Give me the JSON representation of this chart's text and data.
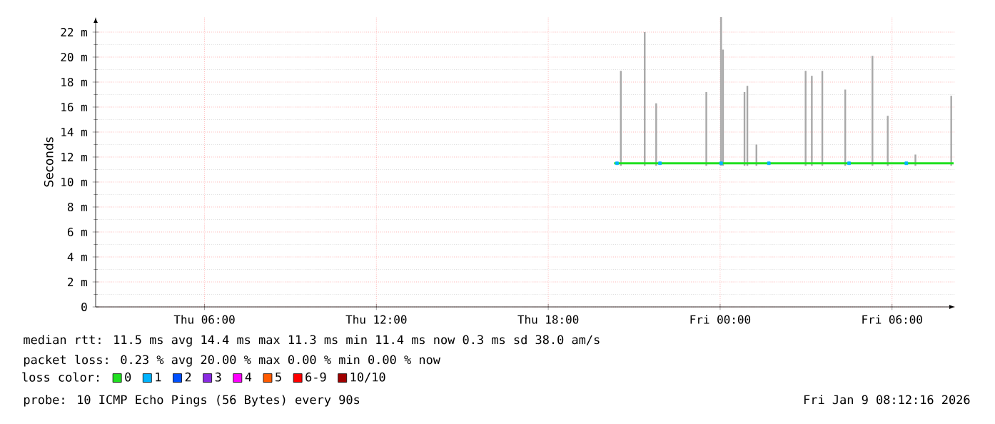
{
  "chart_data": {
    "type": "line",
    "ylabel": "Seconds",
    "legend_title": "loss color:",
    "xlim": [
      "2026-01-08T02:12",
      "2026-01-09T08:12"
    ],
    "xticks": [
      {
        "value": "2026-01-08T06:00",
        "label": "Thu 06:00"
      },
      {
        "value": "2026-01-08T12:00",
        "label": "Thu 12:00"
      },
      {
        "value": "2026-01-08T18:00",
        "label": "Thu 18:00"
      },
      {
        "value": "2026-01-09T00:00",
        "label": "Fri 00:00"
      },
      {
        "value": "2026-01-09T06:00",
        "label": "Fri 06:00"
      }
    ],
    "ylim": [
      0,
      23.2
    ],
    "yticks": [
      0,
      {
        "value": 2,
        "label": "2 m"
      },
      {
        "value": 4,
        "label": "4 m"
      },
      {
        "value": 6,
        "label": "6 m"
      },
      {
        "value": 8,
        "label": "8 m"
      },
      {
        "value": 10,
        "label": "10 m"
      },
      {
        "value": 12,
        "label": "12 m"
      },
      {
        "value": 14,
        "label": "14 m"
      },
      {
        "value": 16,
        "label": "16 m"
      },
      {
        "value": 18,
        "label": "18 m"
      },
      {
        "value": 20,
        "label": "20 m"
      },
      {
        "value": 22,
        "label": "22 m"
      }
    ],
    "grid": true,
    "legend": "bottom",
    "series": [
      {
        "type": "bar",
        "color": "#a8a8a8",
        "x": [
          "2026-01-08T20:32",
          "2026-01-08T21:22",
          "2026-01-08T21:46",
          "2026-01-08T23:31",
          "2026-01-09T00:02",
          "2026-01-09T00:06",
          "2026-01-09T00:51",
          "2026-01-09T00:57",
          "2026-01-09T01:16",
          "2026-01-09T02:59",
          "2026-01-09T03:12",
          "2026-01-09T03:34",
          "2026-01-09T04:22",
          "2026-01-09T05:19",
          "2026-01-09T05:51",
          "2026-01-09T06:49",
          "2026-01-09T08:04"
        ],
        "base": [
          11.3,
          11.3,
          11.3,
          11.3,
          11.3,
          11.3,
          11.3,
          11.3,
          11.3,
          11.3,
          11.3,
          11.3,
          11.3,
          11.3,
          11.3,
          11.3,
          11.3
        ],
        "values": [
          7.6,
          10.7,
          5.0,
          5.9,
          11.9,
          9.3,
          5.9,
          6.4,
          1.7,
          7.6,
          7.2,
          7.6,
          6.1,
          8.8,
          4.0,
          0.9,
          5.6
        ]
      },
      {
        "name": "0",
        "color": "#20e020",
        "x": [
          "2026-01-08T20:18",
          "2026-01-08T21:00",
          "2026-01-08T22:00",
          "2026-01-08T23:00",
          "2026-01-09T00:00",
          "2026-01-09T01:00",
          "2026-01-09T02:00",
          "2026-01-09T03:00",
          "2026-01-09T04:00",
          "2026-01-09T05:00",
          "2026-01-09T06:00",
          "2026-01-09T07:00",
          "2026-01-09T08:09"
        ],
        "values": [
          11.5,
          11.5,
          11.5,
          11.5,
          11.5,
          11.5,
          11.5,
          11.5,
          11.5,
          11.5,
          11.5,
          11.5,
          11.5
        ]
      },
      {
        "name": "1",
        "type": "scatter",
        "marker": "square",
        "color": "#00b4ff",
        "x": [
          "2026-01-08T20:24",
          "2026-01-08T21:54",
          "2026-01-09T00:02",
          "2026-01-09T01:42",
          "2026-01-09T04:30",
          "2026-01-09T06:30"
        ],
        "values": [
          11.5,
          11.5,
          11.5,
          11.5,
          11.5,
          11.5
        ]
      },
      {
        "name": "2",
        "type": "scatter",
        "color": "#0050ff"
      },
      {
        "name": "3",
        "type": "scatter",
        "color": "#8a2be2"
      },
      {
        "name": "4",
        "type": "scatter",
        "color": "#ff00ff"
      },
      {
        "name": "5",
        "type": "scatter",
        "color": "#ff5a00"
      },
      {
        "name": "6-9",
        "type": "scatter",
        "color": "#ff0000"
      },
      {
        "name": "10/10",
        "type": "scatter",
        "color": "#a00000"
      }
    ],
    "annotations": [
      "median rtt: 11.5 ms avg 14.4 ms max 11.3 ms min 11.4 ms now 0.3 ms sd 38.0 am/s",
      "packet loss: 0.23 % avg 20.00 % max 0.00 % min 0.00 % now",
      "probe: 10 ICMP Echo Pings (56 Bytes) every 90s",
      "Fri Jan 9 08:12:16 2026"
    ]
  }
}
